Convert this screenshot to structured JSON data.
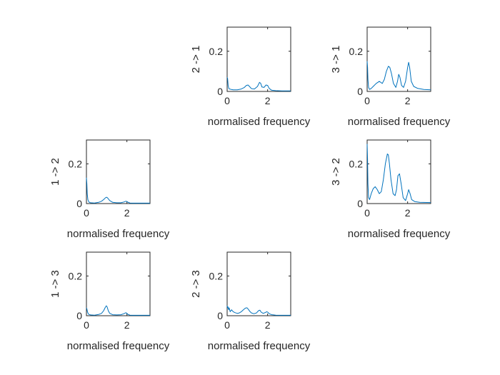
{
  "chart_data": [
    {
      "id": "p21",
      "type": "line",
      "xlabel": "normalised frequency",
      "ylabel": "2 -> 1",
      "xlim": [
        0,
        3.14159
      ],
      "ylim": [
        0,
        0.32
      ],
      "xticks": [
        {
          "value": 0,
          "label": "0"
        },
        {
          "value": 2,
          "label": "2"
        }
      ],
      "yticks": [
        {
          "value": 0,
          "label": "0"
        },
        {
          "value": 0.2,
          "label": "0.2"
        }
      ],
      "series": [
        {
          "color": "#0072BD",
          "x": [
            0,
            0.02,
            0.05,
            0.08,
            0.12,
            0.2,
            0.3,
            0.5,
            0.7,
            0.85,
            0.95,
            1.03,
            1.1,
            1.2,
            1.35,
            1.5,
            1.6,
            1.66,
            1.72,
            1.82,
            1.92,
            2.0,
            2.08,
            2.2,
            2.4,
            2.7,
            3.14
          ],
          "y": [
            0.07,
            0.065,
            0.03,
            0.015,
            0.012,
            0.01,
            0.008,
            0.008,
            0.012,
            0.02,
            0.03,
            0.032,
            0.025,
            0.014,
            0.012,
            0.025,
            0.045,
            0.04,
            0.022,
            0.02,
            0.032,
            0.03,
            0.015,
            0.006,
            0.004,
            0.003,
            0.003
          ]
        }
      ]
    },
    {
      "id": "p31",
      "type": "line",
      "xlabel": "normalised frequency",
      "ylabel": "3 -> 1",
      "xlim": [
        0,
        3.14159
      ],
      "ylim": [
        0,
        0.32
      ],
      "xticks": [
        {
          "value": 0,
          "label": "0"
        },
        {
          "value": 2,
          "label": "2"
        }
      ],
      "yticks": [
        {
          "value": 0,
          "label": "0"
        },
        {
          "value": 0.2,
          "label": "0.2"
        }
      ],
      "series": [
        {
          "color": "#0072BD",
          "x": [
            0,
            0.02,
            0.04,
            0.07,
            0.12,
            0.2,
            0.3,
            0.45,
            0.6,
            0.75,
            0.85,
            0.95,
            1.05,
            1.12,
            1.2,
            1.3,
            1.42,
            1.5,
            1.56,
            1.62,
            1.7,
            1.8,
            1.9,
            2.0,
            2.05,
            2.1,
            2.18,
            2.3,
            2.5,
            2.8,
            3.14
          ],
          "y": [
            0.15,
            0.12,
            0.06,
            0.02,
            0.01,
            0.015,
            0.025,
            0.04,
            0.05,
            0.04,
            0.06,
            0.1,
            0.125,
            0.12,
            0.09,
            0.04,
            0.02,
            0.05,
            0.085,
            0.07,
            0.03,
            0.02,
            0.05,
            0.12,
            0.145,
            0.12,
            0.05,
            0.025,
            0.015,
            0.01,
            0.008
          ]
        }
      ]
    },
    {
      "id": "p12",
      "type": "line",
      "xlabel": "normalised frequency",
      "ylabel": "1 -> 2",
      "xlim": [
        0,
        3.14159
      ],
      "ylim": [
        0,
        0.32
      ],
      "xticks": [
        {
          "value": 0,
          "label": "0"
        },
        {
          "value": 2,
          "label": "2"
        }
      ],
      "yticks": [
        {
          "value": 0,
          "label": "0"
        },
        {
          "value": 0.2,
          "label": "0.2"
        }
      ],
      "series": [
        {
          "color": "#0072BD",
          "x": [
            0,
            0.02,
            0.04,
            0.07,
            0.12,
            0.2,
            0.4,
            0.6,
            0.75,
            0.85,
            0.95,
            1.0,
            1.05,
            1.15,
            1.3,
            1.5,
            1.7,
            1.85,
            1.95,
            2.0,
            2.05,
            2.15,
            2.3,
            2.6,
            3.14
          ],
          "y": [
            0.13,
            0.1,
            0.05,
            0.02,
            0.008,
            0.004,
            0.003,
            0.006,
            0.012,
            0.02,
            0.03,
            0.032,
            0.028,
            0.015,
            0.006,
            0.004,
            0.004,
            0.008,
            0.012,
            0.01,
            0.007,
            0.003,
            0.002,
            0.002,
            0.002
          ]
        }
      ]
    },
    {
      "id": "p32",
      "type": "line",
      "xlabel": "normalised frequency",
      "ylabel": "3 -> 2",
      "xlim": [
        0,
        3.14159
      ],
      "ylim": [
        0,
        0.32
      ],
      "xticks": [
        {
          "value": 0,
          "label": "0"
        },
        {
          "value": 2,
          "label": "2"
        }
      ],
      "yticks": [
        {
          "value": 0,
          "label": "0"
        },
        {
          "value": 0.2,
          "label": "0.2"
        }
      ],
      "series": [
        {
          "color": "#0072BD",
          "x": [
            0,
            0.02,
            0.04,
            0.07,
            0.12,
            0.2,
            0.3,
            0.4,
            0.5,
            0.6,
            0.7,
            0.8,
            0.9,
            1.0,
            1.05,
            1.1,
            1.18,
            1.28,
            1.38,
            1.45,
            1.52,
            1.6,
            1.68,
            1.78,
            1.9,
            2.0,
            2.05,
            2.12,
            2.2,
            2.35,
            2.6,
            3.14
          ],
          "y": [
            0.3,
            0.22,
            0.1,
            0.03,
            0.02,
            0.05,
            0.075,
            0.085,
            0.07,
            0.05,
            0.06,
            0.12,
            0.2,
            0.25,
            0.245,
            0.2,
            0.12,
            0.05,
            0.04,
            0.07,
            0.14,
            0.15,
            0.1,
            0.03,
            0.015,
            0.05,
            0.07,
            0.05,
            0.02,
            0.01,
            0.006,
            0.005
          ]
        }
      ]
    },
    {
      "id": "p13",
      "type": "line",
      "xlabel": "normalised frequency",
      "ylabel": "1 -> 3",
      "xlim": [
        0,
        3.14159
      ],
      "ylim": [
        0,
        0.32
      ],
      "xticks": [
        {
          "value": 0,
          "label": "0"
        },
        {
          "value": 2,
          "label": "2"
        }
      ],
      "yticks": [
        {
          "value": 0,
          "label": "0"
        },
        {
          "value": 0.2,
          "label": "0.2"
        }
      ],
      "series": [
        {
          "color": "#0072BD",
          "x": [
            0,
            0.02,
            0.05,
            0.1,
            0.2,
            0.4,
            0.6,
            0.75,
            0.85,
            0.92,
            0.98,
            1.02,
            1.08,
            1.15,
            1.3,
            1.5,
            1.7,
            1.85,
            1.95,
            2.0,
            2.05,
            2.15,
            2.3,
            2.6,
            3.14
          ],
          "y": [
            0.04,
            0.035,
            0.02,
            0.008,
            0.004,
            0.003,
            0.006,
            0.012,
            0.025,
            0.04,
            0.05,
            0.045,
            0.025,
            0.012,
            0.005,
            0.004,
            0.005,
            0.01,
            0.015,
            0.012,
            0.007,
            0.003,
            0.002,
            0.002,
            0.002
          ]
        }
      ]
    },
    {
      "id": "p23",
      "type": "line",
      "xlabel": "normalised frequency",
      "ylabel": "2 -> 3",
      "xlim": [
        0,
        3.14159
      ],
      "ylim": [
        0,
        0.32
      ],
      "xticks": [
        {
          "value": 0,
          "label": "0"
        },
        {
          "value": 2,
          "label": "2"
        }
      ],
      "yticks": [
        {
          "value": 0,
          "label": "0"
        },
        {
          "value": 0.2,
          "label": "0.2"
        }
      ],
      "series": [
        {
          "color": "#0072BD",
          "x": [
            0,
            0.02,
            0.04,
            0.07,
            0.1,
            0.15,
            0.22,
            0.3,
            0.4,
            0.5,
            0.6,
            0.7,
            0.8,
            0.9,
            0.98,
            1.05,
            1.12,
            1.2,
            1.32,
            1.45,
            1.55,
            1.62,
            1.68,
            1.78,
            1.88,
            1.96,
            2.02,
            2.08,
            2.2,
            2.4,
            2.7,
            3.14
          ],
          "y": [
            0.05,
            0.04,
            0.045,
            0.03,
            0.04,
            0.02,
            0.03,
            0.02,
            0.015,
            0.012,
            0.014,
            0.02,
            0.03,
            0.038,
            0.04,
            0.032,
            0.022,
            0.014,
            0.01,
            0.014,
            0.025,
            0.028,
            0.018,
            0.012,
            0.016,
            0.02,
            0.017,
            0.01,
            0.005,
            0.003,
            0.002,
            0.002
          ]
        }
      ]
    }
  ]
}
